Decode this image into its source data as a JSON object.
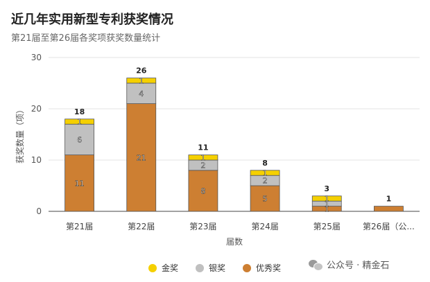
{
  "header": {
    "title": "近几年实用新型专利获奖情况",
    "subtitle": "第21届至第26届各奖项获奖数量统计"
  },
  "watermark": {
    "icon": "wechat-icon",
    "text": "公众号 · 精金石"
  },
  "chart_data": {
    "type": "bar",
    "stacked": true,
    "categories": [
      "第21届",
      "第22届",
      "第23届",
      "第24届",
      "第25届",
      "第26届（公..."
    ],
    "series": [
      {
        "name": "优秀奖",
        "color": "#cd7f32",
        "values": [
          11,
          21,
          8,
          5,
          1,
          1
        ]
      },
      {
        "name": "银奖",
        "color": "#c0c0c0",
        "values": [
          6,
          4,
          2,
          2,
          1,
          0
        ]
      },
      {
        "name": "金奖",
        "color": "#f5d000",
        "values": [
          1,
          1,
          1,
          1,
          1,
          0
        ]
      }
    ],
    "totals": [
      18,
      26,
      11,
      8,
      3,
      1
    ],
    "xlabel": "届数",
    "ylabel": "获奖数量（项）",
    "ylim": [
      0,
      30
    ],
    "yticks": [
      0,
      10,
      20,
      30
    ],
    "grid": true,
    "legend_position": "bottom"
  }
}
